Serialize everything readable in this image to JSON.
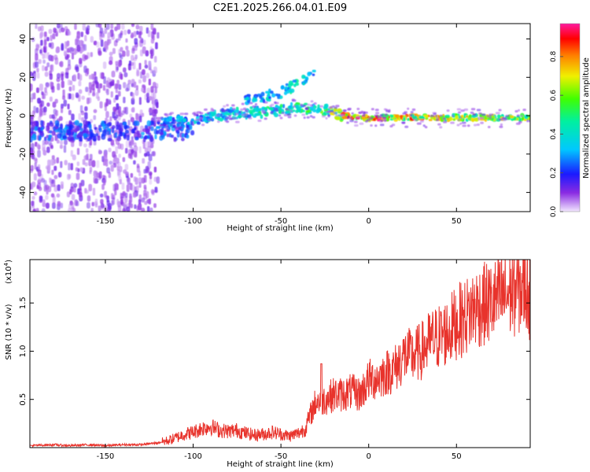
{
  "title": "C2E1.2025.266.04.01.E09",
  "chart_data": [
    {
      "type": "heatmap",
      "xlabel": "Height of straight line (km)",
      "ylabel": "Frequency (Hz)",
      "xlim": [
        -193,
        92
      ],
      "ylim": [
        -50,
        48
      ],
      "xticks": [
        -150,
        -100,
        -50,
        0,
        50
      ],
      "yticks": [
        -40,
        -20,
        0,
        20,
        40
      ],
      "colorbar": {
        "label": "Normalized spectral amplitude",
        "range": [
          0,
          0.97
        ],
        "ticks": [
          "0.0",
          "0.2",
          "0.4",
          "0.6",
          "0.8"
        ],
        "colormap": "rainbow (violet-blue-cyan-green-yellow-orange-red-magenta)"
      },
      "features": [
        {
          "name": "noise",
          "x_range": [
            -193,
            -120
          ],
          "freq_range": [
            -50,
            48
          ],
          "amplitude": 0.08
        },
        {
          "name": "low-band",
          "x_range": [
            -193,
            -100
          ],
          "freq": -8,
          "amplitude": 0.2
        },
        {
          "name": "main-trace",
          "x": [
            -120,
            -100,
            -80,
            -60,
            -40,
            -25,
            -15,
            0,
            50,
            92
          ],
          "freq": [
            -4,
            -2,
            1,
            2,
            4,
            3,
            0,
            -1,
            -1,
            -1
          ],
          "amplitude": [
            0.3,
            0.35,
            0.4,
            0.45,
            0.5,
            0.55,
            0.75,
            0.9,
            0.7,
            0.65
          ]
        },
        {
          "name": "upper-trace",
          "x": [
            -70,
            -50,
            -40,
            -30
          ],
          "freq": [
            8,
            12,
            17,
            22
          ],
          "amplitude": [
            0.35,
            0.4,
            0.45,
            0.3
          ]
        }
      ]
    },
    {
      "type": "line",
      "xlabel": "Height of straight line (km)",
      "ylabel": "SNR (10 * v/v)",
      "y_multiplier": "(x10",
      "y_multiplier_exp": "4",
      "xlim": [
        -193,
        92
      ],
      "ylim": [
        0,
        1.95
      ],
      "xticks": [
        -150,
        -100,
        -50,
        0,
        50
      ],
      "yticks": [
        "0.5",
        "1.0",
        "1.5"
      ],
      "series": [
        {
          "name": "SNR",
          "color": "#e8332c",
          "x": [
            -193,
            -180,
            -170,
            -160,
            -150,
            -140,
            -130,
            -125,
            -120,
            -115,
            -110,
            -105,
            -100,
            -95,
            -90,
            -85,
            -80,
            -75,
            -70,
            -65,
            -60,
            -55,
            -50,
            -45,
            -40,
            -36,
            -33,
            -30,
            -25,
            -20,
            -15,
            -10,
            -5,
            0,
            5,
            10,
            15,
            20,
            25,
            30,
            35,
            40,
            45,
            50,
            55,
            60,
            65,
            70,
            75,
            80,
            85,
            90,
            92
          ],
          "values": [
            0.02,
            0.03,
            0.02,
            0.03,
            0.02,
            0.03,
            0.03,
            0.04,
            0.05,
            0.07,
            0.1,
            0.14,
            0.16,
            0.2,
            0.22,
            0.18,
            0.17,
            0.18,
            0.15,
            0.13,
            0.14,
            0.16,
            0.14,
            0.12,
            0.15,
            0.2,
            0.35,
            0.48,
            0.5,
            0.55,
            0.55,
            0.58,
            0.55,
            0.7,
            0.72,
            0.78,
            0.82,
            0.95,
            0.95,
            1.0,
            1.1,
            1.15,
            1.2,
            1.3,
            1.35,
            1.45,
            1.48,
            1.5,
            1.55,
            1.6,
            1.65,
            1.68,
            1.55
          ]
        }
      ]
    }
  ]
}
